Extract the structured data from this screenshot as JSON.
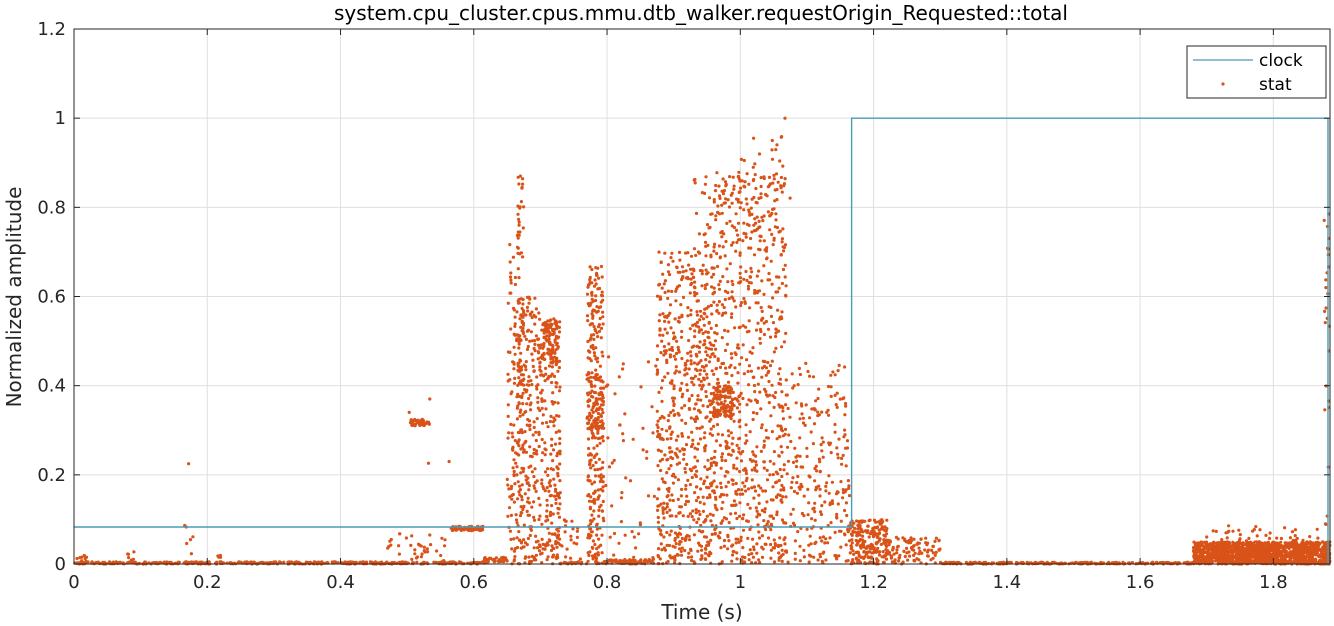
{
  "chart_data": {
    "type": "scatter",
    "title": "system.cpu_cluster.cpus.mmu.dtb_walker.requestOrigin_Requested::total",
    "xlabel": "Time (s)",
    "ylabel": "Normalized amplitude",
    "xlim": [
      0,
      1.885
    ],
    "ylim": [
      0,
      1.2
    ],
    "x_ticks": [
      0,
      0.2,
      0.4,
      0.6,
      0.8,
      1,
      1.2,
      1.4,
      1.6,
      1.8
    ],
    "x_tick_labels": [
      "0",
      "0.2",
      "0.4",
      "0.6",
      "0.8",
      "1",
      "1.2",
      "1.4",
      "1.6",
      "1.8"
    ],
    "y_ticks": [
      0,
      0.2,
      0.4,
      0.6,
      0.8,
      1,
      1.2
    ],
    "y_tick_labels": [
      "0",
      "0.2",
      "0.4",
      "0.6",
      "0.8",
      "1",
      "1.2"
    ],
    "grid": true,
    "legend_position": "top-right",
    "series": [
      {
        "name": "clock",
        "kind": "step-line",
        "color": "#4a9bb5",
        "x": [
          0,
          1.167,
          1.167,
          1.882,
          1.882
        ],
        "y": [
          0.083,
          0.083,
          1.0,
          1.0,
          0.0
        ]
      },
      {
        "name": "stat",
        "kind": "markers",
        "color": "#d95319",
        "clusters": [
          {
            "x0": 0.0,
            "x1": 0.62,
            "y0": 0.0,
            "y1": 0.005,
            "n": 420
          },
          {
            "x0": 0.0,
            "x1": 0.02,
            "y0": 0.0,
            "y1": 0.02,
            "n": 12
          },
          {
            "x0": 0.08,
            "x1": 0.095,
            "y0": 0.0,
            "y1": 0.03,
            "n": 8
          },
          {
            "x0": 0.165,
            "x1": 0.18,
            "y0": 0.0,
            "y1": 0.1,
            "n": 8
          },
          {
            "x0": 0.21,
            "x1": 0.22,
            "y0": 0.0,
            "y1": 0.02,
            "n": 5
          },
          {
            "x0": 0.47,
            "x1": 0.56,
            "y0": 0.0,
            "y1": 0.07,
            "n": 40
          },
          {
            "x0": 0.505,
            "x1": 0.535,
            "y0": 0.31,
            "y1": 0.325,
            "n": 45
          },
          {
            "x0": 0.565,
            "x1": 0.615,
            "y0": 0.075,
            "y1": 0.085,
            "n": 70
          },
          {
            "x0": 0.615,
            "x1": 0.65,
            "y0": 0.005,
            "y1": 0.015,
            "n": 45
          },
          {
            "x0": 0.65,
            "x1": 0.665,
            "y0": 0.0,
            "y1": 0.72,
            "n": 90
          },
          {
            "x0": 0.665,
            "x1": 0.675,
            "y0": 0.4,
            "y1": 0.87,
            "n": 70
          },
          {
            "x0": 0.665,
            "x1": 0.7,
            "y0": 0.0,
            "y1": 0.6,
            "n": 260
          },
          {
            "x0": 0.7,
            "x1": 0.73,
            "y0": 0.0,
            "y1": 0.55,
            "n": 220
          },
          {
            "x0": 0.705,
            "x1": 0.725,
            "y0": 0.45,
            "y1": 0.55,
            "n": 80
          },
          {
            "x0": 0.73,
            "x1": 0.76,
            "y0": 0.0,
            "y1": 0.1,
            "n": 20
          },
          {
            "x0": 0.73,
            "x1": 0.77,
            "y0": 0.0,
            "y1": 0.005,
            "n": 25
          },
          {
            "x0": 0.77,
            "x1": 0.795,
            "y0": 0.0,
            "y1": 0.67,
            "n": 280
          },
          {
            "x0": 0.77,
            "x1": 0.795,
            "y0": 0.3,
            "y1": 0.42,
            "n": 80
          },
          {
            "x0": 0.795,
            "x1": 0.87,
            "y0": 0.0,
            "y1": 0.01,
            "n": 70
          },
          {
            "x0": 0.795,
            "x1": 0.875,
            "y0": 0.0,
            "y1": 0.48,
            "n": 50
          },
          {
            "x0": 0.875,
            "x1": 0.96,
            "y0": 0.0,
            "y1": 0.7,
            "n": 600
          },
          {
            "x0": 0.93,
            "x1": 0.965,
            "y0": 0.4,
            "y1": 0.87,
            "n": 70
          },
          {
            "x0": 0.96,
            "x1": 0.99,
            "y0": 0.33,
            "y1": 0.4,
            "n": 100
          },
          {
            "x0": 0.96,
            "x1": 1.07,
            "y0": 0.0,
            "y1": 0.88,
            "n": 750
          },
          {
            "x0": 1.0,
            "x1": 1.075,
            "y0": 0.7,
            "y1": 0.97,
            "n": 50
          },
          {
            "x0": 1.07,
            "x1": 1.165,
            "y0": 0.0,
            "y1": 0.45,
            "n": 240
          },
          {
            "x0": 1.165,
            "x1": 1.22,
            "y0": 0.0,
            "y1": 0.1,
            "n": 220
          },
          {
            "x0": 1.22,
            "x1": 1.3,
            "y0": 0.0,
            "y1": 0.06,
            "n": 100
          },
          {
            "x0": 1.3,
            "x1": 1.68,
            "y0": 0.0,
            "y1": 0.004,
            "n": 260
          },
          {
            "x0": 1.68,
            "x1": 1.885,
            "y0": 0.0,
            "y1": 0.05,
            "n": 1400
          },
          {
            "x0": 1.7,
            "x1": 1.885,
            "y0": 0.0,
            "y1": 0.09,
            "n": 80
          },
          {
            "x0": 1.876,
            "x1": 1.884,
            "y0": 0.0,
            "y1": 0.8,
            "n": 30
          }
        ],
        "points": [
          {
            "x": 0.172,
            "y": 0.225
          },
          {
            "x": 0.534,
            "y": 0.37
          },
          {
            "x": 0.532,
            "y": 0.226
          },
          {
            "x": 0.563,
            "y": 0.23
          },
          {
            "x": 0.503,
            "y": 0.34
          },
          {
            "x": 1.067,
            "y": 1.0
          },
          {
            "x": 1.048,
            "y": 0.95
          },
          {
            "x": 1.055,
            "y": 0.94
          },
          {
            "x": 1.02,
            "y": 0.955
          },
          {
            "x": 1.006,
            "y": 0.905
          },
          {
            "x": 0.67,
            "y": 0.87
          },
          {
            "x": 0.668,
            "y": 0.76
          },
          {
            "x": 1.883,
            "y": 0.785
          },
          {
            "x": 1.883,
            "y": 0.73
          }
        ]
      }
    ]
  }
}
